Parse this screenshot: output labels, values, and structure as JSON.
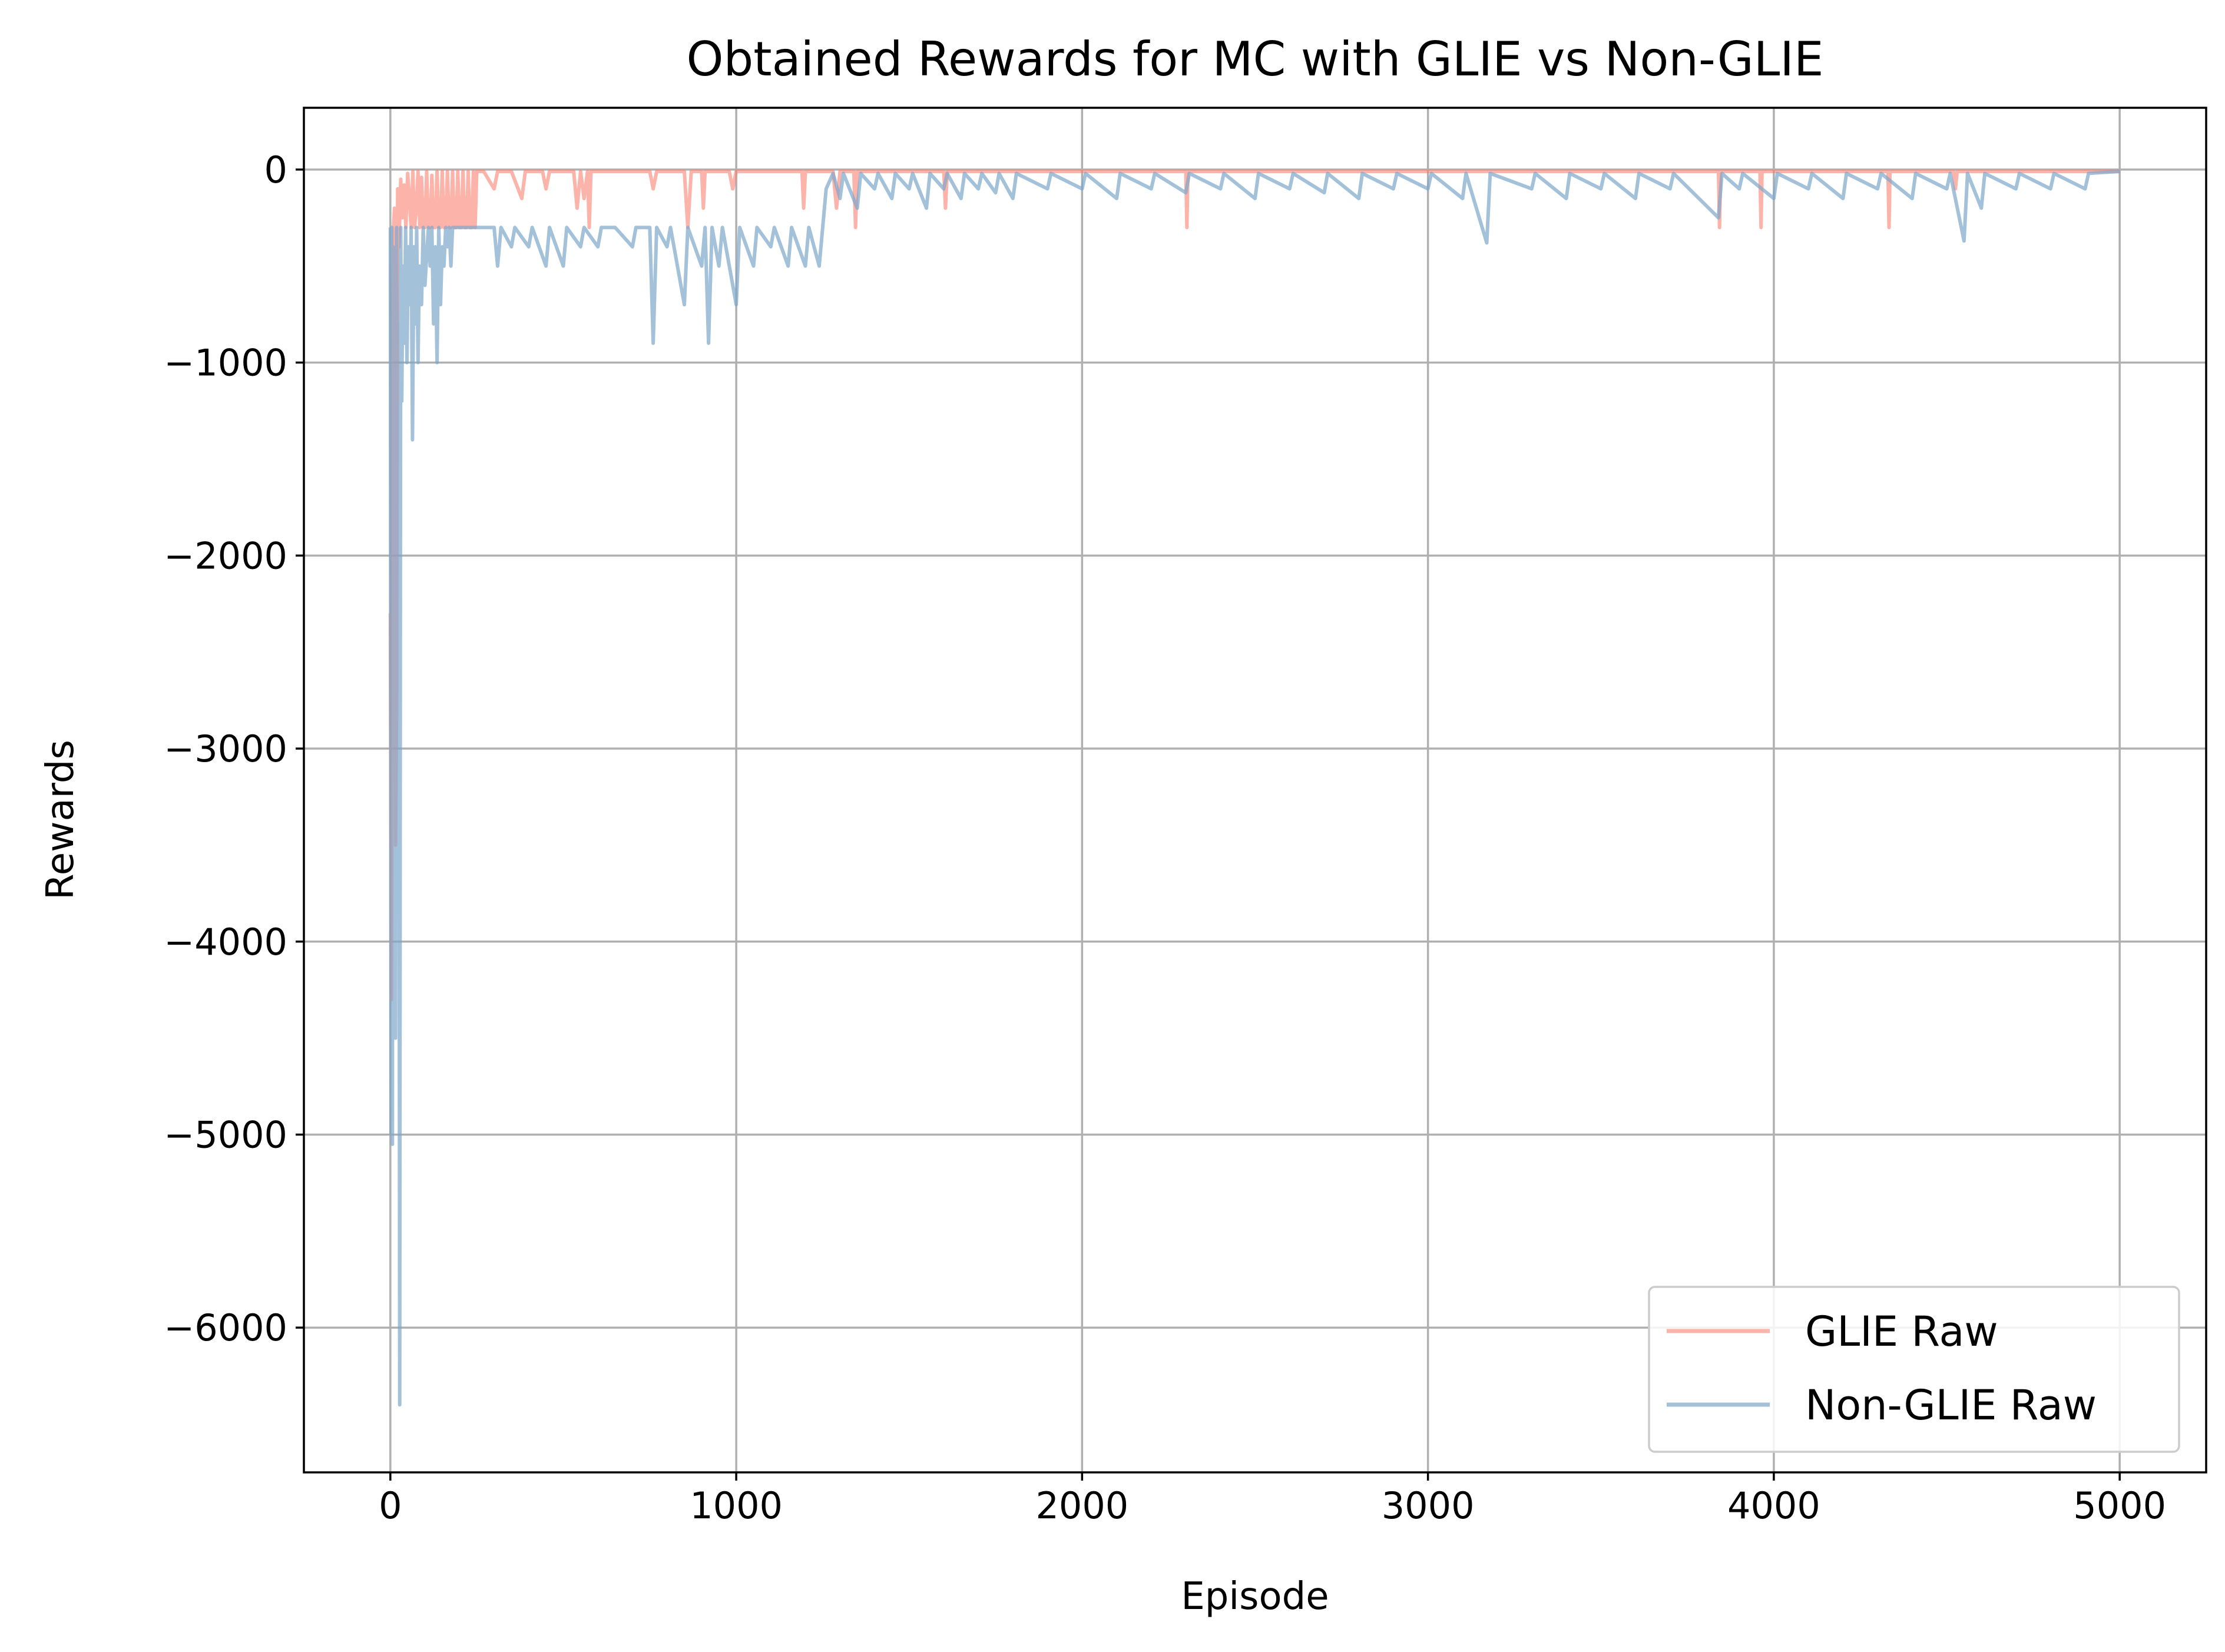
{
  "chart_data": {
    "type": "line",
    "title": "Obtained Rewards for MC with GLIE vs Non-GLIE",
    "xlabel": "Episode",
    "ylabel": "Rewards",
    "xlim": [
      -250,
      5250
    ],
    "ylim": [
      -6750,
      320
    ],
    "xticks": [
      0,
      1000,
      2000,
      3000,
      4000,
      5000
    ],
    "yticks": [
      0,
      -1000,
      -2000,
      -3000,
      -4000,
      -5000,
      -6000
    ],
    "xtick_labels": [
      "0",
      "1000",
      "2000",
      "3000",
      "4000",
      "5000"
    ],
    "ytick_labels": [
      "0",
      "−1000",
      "−2000",
      "−3000",
      "−4000",
      "−5000",
      "−6000"
    ],
    "grid": true,
    "legend_position": "lower-right",
    "series": [
      {
        "name": "GLIE Raw",
        "color": "#fa8072",
        "opacity": 0.6,
        "points": [
          [
            0,
            -2300
          ],
          [
            3,
            -4300
          ],
          [
            6,
            -1200
          ],
          [
            9,
            -300
          ],
          [
            12,
            -200
          ],
          [
            15,
            -3500
          ],
          [
            18,
            -2800
          ],
          [
            21,
            -100
          ],
          [
            25,
            -400
          ],
          [
            30,
            -50
          ],
          [
            35,
            -250
          ],
          [
            40,
            -80
          ],
          [
            45,
            -300
          ],
          [
            50,
            -20
          ],
          [
            55,
            -150
          ],
          [
            60,
            -300
          ],
          [
            65,
            -10
          ],
          [
            70,
            -300
          ],
          [
            75,
            -200
          ],
          [
            80,
            -10
          ],
          [
            85,
            -300
          ],
          [
            90,
            -40
          ],
          [
            95,
            -300
          ],
          [
            100,
            -300
          ],
          [
            105,
            -10
          ],
          [
            110,
            -300
          ],
          [
            115,
            -300
          ],
          [
            120,
            -30
          ],
          [
            125,
            -300
          ],
          [
            130,
            -300
          ],
          [
            135,
            -10
          ],
          [
            140,
            -300
          ],
          [
            145,
            -300
          ],
          [
            150,
            -10
          ],
          [
            155,
            -300
          ],
          [
            160,
            -300
          ],
          [
            165,
            -10
          ],
          [
            170,
            -300
          ],
          [
            175,
            -300
          ],
          [
            180,
            -10
          ],
          [
            185,
            -300
          ],
          [
            190,
            -300
          ],
          [
            195,
            -10
          ],
          [
            200,
            -300
          ],
          [
            205,
            -300
          ],
          [
            210,
            -10
          ],
          [
            215,
            -300
          ],
          [
            220,
            -300
          ],
          [
            225,
            -10
          ],
          [
            230,
            -300
          ],
          [
            235,
            -300
          ],
          [
            240,
            -10
          ],
          [
            245,
            -300
          ],
          [
            250,
            -10
          ],
          [
            270,
            -10
          ],
          [
            300,
            -100
          ],
          [
            310,
            -10
          ],
          [
            350,
            -10
          ],
          [
            380,
            -150
          ],
          [
            390,
            -10
          ],
          [
            440,
            -10
          ],
          [
            450,
            -100
          ],
          [
            460,
            -10
          ],
          [
            530,
            -10
          ],
          [
            540,
            -200
          ],
          [
            550,
            -10
          ],
          [
            560,
            -150
          ],
          [
            570,
            -10
          ],
          [
            575,
            -300
          ],
          [
            580,
            -10
          ],
          [
            650,
            -10
          ],
          [
            700,
            -10
          ],
          [
            750,
            -10
          ],
          [
            760,
            -100
          ],
          [
            770,
            -10
          ],
          [
            850,
            -10
          ],
          [
            860,
            -300
          ],
          [
            870,
            -10
          ],
          [
            900,
            -10
          ],
          [
            905,
            -200
          ],
          [
            910,
            -10
          ],
          [
            980,
            -10
          ],
          [
            990,
            -100
          ],
          [
            1000,
            -10
          ],
          [
            1050,
            -10
          ],
          [
            1100,
            -10
          ],
          [
            1150,
            -10
          ],
          [
            1190,
            -10
          ],
          [
            1195,
            -200
          ],
          [
            1200,
            -10
          ],
          [
            1280,
            -10
          ],
          [
            1290,
            -200
          ],
          [
            1300,
            -10
          ],
          [
            1340,
            -10
          ],
          [
            1345,
            -300
          ],
          [
            1350,
            -10
          ],
          [
            1500,
            -10
          ],
          [
            1600,
            -10
          ],
          [
            1605,
            -200
          ],
          [
            1610,
            -10
          ],
          [
            2000,
            -10
          ],
          [
            2300,
            -10
          ],
          [
            2303,
            -300
          ],
          [
            2306,
            -10
          ],
          [
            2500,
            -10
          ],
          [
            3000,
            -10
          ],
          [
            3500,
            -10
          ],
          [
            3840,
            -10
          ],
          [
            3843,
            -300
          ],
          [
            3846,
            -10
          ],
          [
            3960,
            -10
          ],
          [
            3963,
            -300
          ],
          [
            3966,
            -10
          ],
          [
            4330,
            -10
          ],
          [
            4333,
            -300
          ],
          [
            4336,
            -10
          ],
          [
            4500,
            -10
          ],
          [
            4520,
            -10
          ],
          [
            4525,
            -100
          ],
          [
            4530,
            -10
          ],
          [
            5000,
            -10
          ]
        ]
      },
      {
        "name": "Non-GLIE Raw",
        "color": "#7da7ca",
        "opacity": 0.7,
        "points": [
          [
            0,
            -300
          ],
          [
            2,
            -5000
          ],
          [
            4,
            -300
          ],
          [
            6,
            -5050
          ],
          [
            8,
            -400
          ],
          [
            10,
            -3000
          ],
          [
            12,
            -500
          ],
          [
            15,
            -4500
          ],
          [
            18,
            -300
          ],
          [
            21,
            -1600
          ],
          [
            24,
            -800
          ],
          [
            27,
            -6400
          ],
          [
            30,
            -300
          ],
          [
            33,
            -1200
          ],
          [
            36,
            -500
          ],
          [
            40,
            -900
          ],
          [
            44,
            -300
          ],
          [
            48,
            -1000
          ],
          [
            52,
            -400
          ],
          [
            56,
            -700
          ],
          [
            60,
            -300
          ],
          [
            64,
            -1400
          ],
          [
            68,
            -400
          ],
          [
            72,
            -800
          ],
          [
            76,
            -300
          ],
          [
            80,
            -1000
          ],
          [
            84,
            -500
          ],
          [
            90,
            -700
          ],
          [
            95,
            -300
          ],
          [
            100,
            -600
          ],
          [
            110,
            -300
          ],
          [
            115,
            -500
          ],
          [
            120,
            -300
          ],
          [
            125,
            -800
          ],
          [
            130,
            -400
          ],
          [
            135,
            -1000
          ],
          [
            140,
            -300
          ],
          [
            145,
            -700
          ],
          [
            150,
            -400
          ],
          [
            155,
            -500
          ],
          [
            160,
            -300
          ],
          [
            165,
            -400
          ],
          [
            170,
            -300
          ],
          [
            175,
            -500
          ],
          [
            180,
            -300
          ],
          [
            200,
            -300
          ],
          [
            250,
            -300
          ],
          [
            300,
            -300
          ],
          [
            310,
            -500
          ],
          [
            320,
            -300
          ],
          [
            350,
            -400
          ],
          [
            360,
            -300
          ],
          [
            400,
            -400
          ],
          [
            410,
            -300
          ],
          [
            450,
            -500
          ],
          [
            460,
            -300
          ],
          [
            500,
            -500
          ],
          [
            510,
            -300
          ],
          [
            550,
            -400
          ],
          [
            560,
            -300
          ],
          [
            600,
            -400
          ],
          [
            610,
            -300
          ],
          [
            650,
            -300
          ],
          [
            700,
            -400
          ],
          [
            710,
            -300
          ],
          [
            750,
            -300
          ],
          [
            760,
            -900
          ],
          [
            770,
            -300
          ],
          [
            800,
            -400
          ],
          [
            810,
            -300
          ],
          [
            850,
            -700
          ],
          [
            860,
            -300
          ],
          [
            900,
            -500
          ],
          [
            910,
            -300
          ],
          [
            920,
            -900
          ],
          [
            930,
            -300
          ],
          [
            950,
            -500
          ],
          [
            960,
            -300
          ],
          [
            1000,
            -700
          ],
          [
            1010,
            -300
          ],
          [
            1050,
            -500
          ],
          [
            1060,
            -300
          ],
          [
            1100,
            -400
          ],
          [
            1110,
            -300
          ],
          [
            1150,
            -500
          ],
          [
            1160,
            -300
          ],
          [
            1200,
            -500
          ],
          [
            1210,
            -300
          ],
          [
            1240,
            -500
          ],
          [
            1250,
            -300
          ],
          [
            1260,
            -100
          ],
          [
            1280,
            -20
          ],
          [
            1300,
            -150
          ],
          [
            1310,
            -20
          ],
          [
            1350,
            -200
          ],
          [
            1360,
            -20
          ],
          [
            1400,
            -100
          ],
          [
            1410,
            -20
          ],
          [
            1450,
            -150
          ],
          [
            1460,
            -20
          ],
          [
            1500,
            -100
          ],
          [
            1510,
            -20
          ],
          [
            1550,
            -200
          ],
          [
            1560,
            -20
          ],
          [
            1600,
            -100
          ],
          [
            1610,
            -20
          ],
          [
            1650,
            -150
          ],
          [
            1660,
            -20
          ],
          [
            1700,
            -100
          ],
          [
            1710,
            -20
          ],
          [
            1750,
            -120
          ],
          [
            1760,
            -20
          ],
          [
            1800,
            -150
          ],
          [
            1810,
            -20
          ],
          [
            1900,
            -100
          ],
          [
            1910,
            -20
          ],
          [
            2000,
            -100
          ],
          [
            2010,
            -20
          ],
          [
            2100,
            -150
          ],
          [
            2110,
            -20
          ],
          [
            2200,
            -100
          ],
          [
            2210,
            -20
          ],
          [
            2300,
            -120
          ],
          [
            2310,
            -20
          ],
          [
            2400,
            -100
          ],
          [
            2410,
            -20
          ],
          [
            2500,
            -150
          ],
          [
            2510,
            -20
          ],
          [
            2600,
            -100
          ],
          [
            2610,
            -20
          ],
          [
            2700,
            -120
          ],
          [
            2710,
            -20
          ],
          [
            2800,
            -150
          ],
          [
            2810,
            -20
          ],
          [
            2900,
            -100
          ],
          [
            2910,
            -20
          ],
          [
            3000,
            -100
          ],
          [
            3010,
            -20
          ],
          [
            3100,
            -150
          ],
          [
            3110,
            -20
          ],
          [
            3170,
            -380
          ],
          [
            3180,
            -20
          ],
          [
            3300,
            -100
          ],
          [
            3310,
            -20
          ],
          [
            3400,
            -150
          ],
          [
            3410,
            -20
          ],
          [
            3500,
            -100
          ],
          [
            3510,
            -20
          ],
          [
            3600,
            -150
          ],
          [
            3610,
            -20
          ],
          [
            3700,
            -100
          ],
          [
            3710,
            -20
          ],
          [
            3840,
            -250
          ],
          [
            3850,
            -20
          ],
          [
            3900,
            -100
          ],
          [
            3910,
            -20
          ],
          [
            4000,
            -150
          ],
          [
            4010,
            -20
          ],
          [
            4100,
            -100
          ],
          [
            4110,
            -20
          ],
          [
            4200,
            -150
          ],
          [
            4210,
            -20
          ],
          [
            4300,
            -100
          ],
          [
            4310,
            -20
          ],
          [
            4400,
            -150
          ],
          [
            4410,
            -20
          ],
          [
            4500,
            -100
          ],
          [
            4510,
            -20
          ],
          [
            4550,
            -370
          ],
          [
            4560,
            -20
          ],
          [
            4600,
            -200
          ],
          [
            4610,
            -20
          ],
          [
            4700,
            -100
          ],
          [
            4710,
            -20
          ],
          [
            4800,
            -100
          ],
          [
            4810,
            -20
          ],
          [
            4900,
            -100
          ],
          [
            4910,
            -20
          ],
          [
            5000,
            -10
          ]
        ]
      }
    ]
  }
}
